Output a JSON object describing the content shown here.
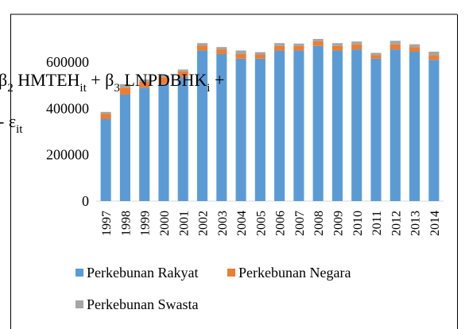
{
  "chart_data": {
    "type": "stacked_bar",
    "categories": [
      "1997",
      "1998",
      "1999",
      "2000",
      "2001",
      "2002",
      "2003",
      "2004",
      "2005",
      "2006",
      "2007",
      "2008",
      "2009",
      "2010",
      "2011",
      "2012",
      "2013",
      "2014"
    ],
    "series": [
      {
        "name": "Perkebunan Rakyat",
        "color": "#5b9bd5",
        "values": [
          355000,
          460000,
          490000,
          505000,
          535000,
          650000,
          635000,
          615000,
          615000,
          650000,
          650000,
          670000,
          650000,
          655000,
          615000,
          655000,
          645000,
          610000
        ]
      },
      {
        "name": "Perkebunan Negara",
        "color": "#ed7d31",
        "values": [
          22000,
          30000,
          25000,
          30000,
          25000,
          22000,
          20000,
          20000,
          18000,
          20000,
          20000,
          20000,
          20000,
          22000,
          15000,
          22000,
          20000,
          20000
        ]
      },
      {
        "name": "Perkebunan Swasta",
        "color": "#a5a5a5",
        "values": [
          8000,
          15000,
          10000,
          8000,
          8000,
          10000,
          10000,
          15000,
          10000,
          12000,
          10000,
          10000,
          12000,
          12000,
          10000,
          15000,
          12000,
          15000
        ]
      }
    ],
    "ylim": [
      0,
      700000
    ],
    "yticks": [
      0,
      200000,
      400000,
      600000
    ],
    "grid": false,
    "annotations": [
      [
        "β",
        "2",
        " HMTEH",
        "it",
        " + β",
        "3",
        " LNPDBHK",
        "i",
        " +"
      ],
      [
        "- ε",
        "it"
      ]
    ]
  }
}
